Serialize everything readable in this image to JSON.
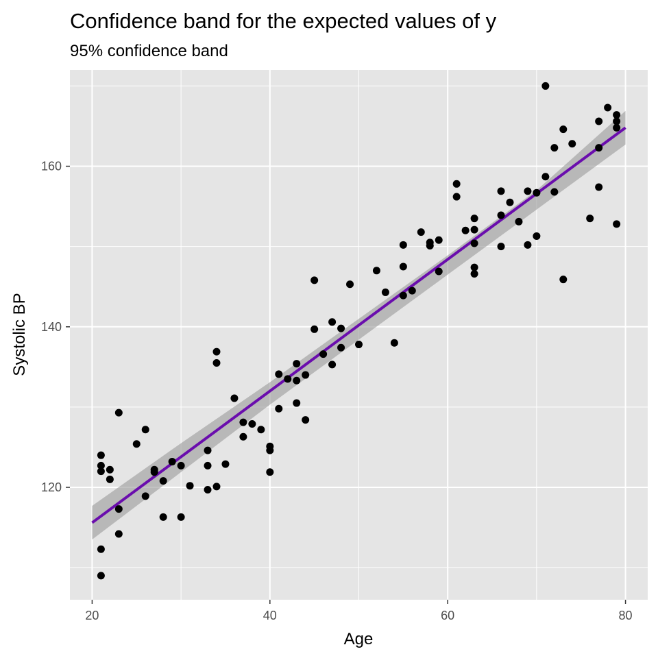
{
  "chart_data": {
    "type": "scatter",
    "title": "Confidence band for the expected values of y",
    "subtitle": "95% confidence band",
    "xlabel": "Age",
    "ylabel": "Systolic BP",
    "xlim": [
      17.5,
      82.5
    ],
    "ylim": [
      106,
      172
    ],
    "x_ticks": [
      20,
      40,
      60,
      80
    ],
    "x_minor_ticks": [
      30,
      50,
      70
    ],
    "y_ticks": [
      120,
      140,
      160
    ],
    "y_minor_ticks": [
      110,
      130,
      150,
      170
    ],
    "grid": true,
    "colors": {
      "panel": "#e5e5e5",
      "grid": "#ffffff",
      "points": "#000000",
      "line": "#6a0dad",
      "band": "#999999"
    },
    "fit_line": {
      "x": [
        20,
        80
      ],
      "y": [
        115.6,
        164.8
      ]
    },
    "confidence_band": {
      "x": [
        20,
        30,
        40,
        50,
        60,
        70,
        80
      ],
      "lower": [
        113.5,
        121.9,
        130.3,
        138.4,
        146.5,
        154.6,
        162.7
      ],
      "upper": [
        117.7,
        125.5,
        133.1,
        141.0,
        148.9,
        157.0,
        166.9
      ]
    },
    "points": {
      "x": [
        21,
        21,
        21,
        21,
        21,
        22,
        22,
        23,
        23,
        23,
        25,
        26,
        26,
        27,
        27,
        28,
        28,
        29,
        30,
        30,
        31,
        33,
        33,
        33,
        34,
        34,
        34,
        35,
        36,
        37,
        37,
        38,
        39,
        40,
        40,
        40,
        41,
        41,
        42,
        43,
        43,
        43,
        44,
        44,
        45,
        45,
        46,
        47,
        47,
        48,
        48,
        49,
        50,
        52,
        53,
        54,
        55,
        55,
        55,
        56,
        57,
        58,
        58,
        59,
        59,
        61,
        61,
        62,
        63,
        63,
        63,
        63,
        63,
        66,
        66,
        66,
        67,
        68,
        69,
        69,
        70,
        70,
        71,
        71,
        72,
        72,
        73,
        73,
        74,
        76,
        77,
        77,
        77,
        78,
        79,
        79,
        79,
        79
      ],
      "y": [
        124.0,
        122.7,
        112.3,
        109.0,
        122.0,
        121.0,
        122.2,
        129.3,
        117.3,
        114.2,
        125.4,
        127.2,
        118.9,
        122.2,
        121.9,
        116.3,
        120.8,
        123.2,
        116.3,
        122.7,
        120.2,
        124.6,
        122.7,
        119.7,
        136.9,
        135.5,
        120.1,
        122.9,
        131.1,
        128.1,
        126.3,
        127.9,
        127.2,
        125.1,
        124.6,
        121.9,
        134.1,
        129.8,
        133.5,
        135.4,
        133.3,
        130.5,
        134.0,
        128.4,
        145.8,
        139.7,
        136.6,
        140.6,
        135.3,
        139.8,
        137.4,
        145.3,
        137.8,
        147.0,
        144.3,
        138.0,
        150.2,
        147.5,
        143.9,
        144.5,
        151.8,
        150.1,
        150.5,
        150.8,
        146.9,
        157.8,
        156.2,
        152.0,
        152.1,
        150.4,
        147.4,
        146.6,
        153.5,
        156.9,
        153.9,
        150.0,
        155.5,
        153.1,
        156.9,
        150.2,
        156.7,
        151.3,
        158.7,
        170.0,
        162.3,
        156.8,
        164.6,
        145.9,
        162.8,
        153.5,
        165.6,
        162.3,
        157.4,
        167.3,
        166.4,
        165.6,
        164.8,
        152.8
      ]
    }
  }
}
